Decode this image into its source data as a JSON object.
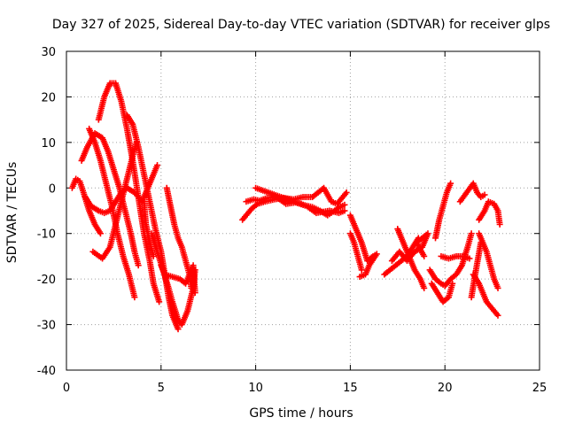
{
  "chart_data": {
    "type": "scatter",
    "title": "Day 327 of 2025, Sidereal Day-to-day VTEC variation (SDTVAR) for receiver glps",
    "xlabel": "GPS time / hours",
    "ylabel": "SDTVAR / TECUs",
    "xlim": [
      0,
      25
    ],
    "ylim": [
      -40,
      30
    ],
    "xticks": [
      0,
      5,
      10,
      15,
      20,
      25
    ],
    "yticks": [
      -40,
      -30,
      -20,
      -10,
      0,
      10,
      20,
      30
    ],
    "grid": true,
    "marker": "plus",
    "color": "#ff0000",
    "arcs": [
      {
        "pts": [
          [
            0.3,
            0
          ],
          [
            0.5,
            2
          ],
          [
            0.7,
            1.5
          ],
          [
            0.9,
            -1
          ],
          [
            1.2,
            -5
          ],
          [
            1.5,
            -8
          ],
          [
            1.8,
            -10
          ]
        ]
      },
      {
        "pts": [
          [
            0.8,
            6
          ],
          [
            1.1,
            9
          ],
          [
            1.5,
            12
          ],
          [
            1.9,
            11
          ],
          [
            2.2,
            8
          ],
          [
            2.5,
            4
          ],
          [
            2.8,
            0
          ],
          [
            3.1,
            -5
          ],
          [
            3.4,
            -10
          ],
          [
            3.6,
            -14
          ],
          [
            3.8,
            -17
          ]
        ]
      },
      {
        "pts": [
          [
            1.7,
            15
          ],
          [
            2.0,
            20
          ],
          [
            2.3,
            23
          ],
          [
            2.6,
            23
          ],
          [
            2.9,
            19
          ],
          [
            3.2,
            13
          ],
          [
            3.5,
            6
          ],
          [
            3.8,
            -2
          ],
          [
            4.1,
            -10
          ],
          [
            4.4,
            -16
          ],
          [
            4.6,
            -21
          ],
          [
            4.9,
            -25
          ]
        ]
      },
      {
        "pts": [
          [
            1.2,
            13
          ],
          [
            1.5,
            10
          ],
          [
            1.8,
            6
          ],
          [
            2.1,
            1
          ],
          [
            2.4,
            -4
          ],
          [
            2.7,
            -10
          ],
          [
            3.0,
            -15
          ],
          [
            3.3,
            -19
          ],
          [
            3.6,
            -24
          ]
        ]
      },
      {
        "pts": [
          [
            1.4,
            -14
          ],
          [
            1.9,
            -15.5
          ],
          [
            2.3,
            -13
          ],
          [
            2.6,
            -8
          ],
          [
            2.9,
            -3
          ],
          [
            3.2,
            2
          ],
          [
            3.5,
            7
          ],
          [
            3.7,
            10
          ]
        ]
      },
      {
        "pts": [
          [
            3.2,
            16
          ],
          [
            3.5,
            14
          ],
          [
            3.8,
            9
          ],
          [
            4.1,
            3
          ],
          [
            4.4,
            -3
          ],
          [
            4.7,
            -9
          ],
          [
            5.0,
            -14
          ],
          [
            5.2,
            -19
          ],
          [
            5.4,
            -24
          ],
          [
            5.6,
            -28
          ],
          [
            5.9,
            -31
          ]
        ]
      },
      {
        "pts": [
          [
            1.0,
            -2
          ],
          [
            1.3,
            -4
          ],
          [
            1.7,
            -5
          ],
          [
            2.0,
            -5.5
          ],
          [
            2.3,
            -5
          ],
          [
            2.6,
            -3
          ],
          [
            2.9,
            -1
          ],
          [
            3.2,
            0
          ],
          [
            3.6,
            -1
          ],
          [
            4.0,
            -3
          ],
          [
            4.3,
            0
          ],
          [
            4.6,
            3
          ],
          [
            4.8,
            5
          ]
        ]
      },
      {
        "pts": [
          [
            4.5,
            -10
          ],
          [
            4.8,
            -14
          ],
          [
            5.1,
            -18
          ],
          [
            5.4,
            -22
          ],
          [
            5.6,
            -25
          ],
          [
            5.9,
            -29
          ],
          [
            6.1,
            -30
          ],
          [
            6.4,
            -27
          ],
          [
            6.7,
            -22
          ],
          [
            6.8,
            -18
          ]
        ]
      },
      {
        "pts": [
          [
            5.3,
            0
          ],
          [
            5.5,
            -4
          ],
          [
            5.7,
            -8
          ],
          [
            5.9,
            -11
          ],
          [
            6.1,
            -13
          ],
          [
            6.3,
            -16
          ],
          [
            6.5,
            -19
          ],
          [
            6.6,
            -22
          ]
        ]
      },
      {
        "pts": [
          [
            4.1,
            -3
          ],
          [
            4.2,
            -8
          ],
          [
            4.4,
            -12
          ],
          [
            4.6,
            -15
          ]
        ]
      },
      {
        "pts": [
          [
            5.0,
            -17
          ],
          [
            5.2,
            -19
          ],
          [
            6.0,
            -20
          ],
          [
            6.3,
            -21
          ],
          [
            6.7,
            -17
          ],
          [
            6.8,
            -23
          ]
        ]
      },
      {
        "pts": [
          [
            9.3,
            -7
          ],
          [
            9.5,
            -6
          ],
          [
            9.8,
            -4.5
          ],
          [
            10.1,
            -3.5
          ],
          [
            10.5,
            -3
          ],
          [
            11.0,
            -2.5
          ],
          [
            11.5,
            -2.2
          ],
          [
            12.0,
            -2.5
          ],
          [
            12.5,
            -2
          ],
          [
            13.0,
            -2
          ],
          [
            13.3,
            -1
          ],
          [
            13.6,
            0
          ],
          [
            13.8,
            -1.5
          ],
          [
            14.0,
            -3
          ],
          [
            14.3,
            -3.5
          ],
          [
            14.6,
            -2
          ],
          [
            14.8,
            -1
          ]
        ]
      },
      {
        "pts": [
          [
            9.5,
            -3
          ],
          [
            9.9,
            -2.5
          ],
          [
            10.2,
            -2.8
          ],
          [
            10.6,
            -2.2
          ],
          [
            11.1,
            -2
          ],
          [
            11.6,
            -3.5
          ],
          [
            12.1,
            -3.2
          ],
          [
            12.6,
            -3.8
          ],
          [
            13.0,
            -4.2
          ],
          [
            13.4,
            -5
          ],
          [
            13.8,
            -6
          ],
          [
            14.1,
            -5.2
          ],
          [
            14.4,
            -4.3
          ],
          [
            14.7,
            -3.7
          ]
        ]
      },
      {
        "pts": [
          [
            10.0,
            0
          ],
          [
            12.7,
            -4
          ],
          [
            13.2,
            -5.5
          ],
          [
            13.9,
            -5
          ],
          [
            14.4,
            -5.5
          ],
          [
            14.7,
            -5
          ]
        ]
      },
      {
        "pts": [
          [
            15.0,
            -6
          ],
          [
            15.3,
            -9
          ],
          [
            15.6,
            -12
          ],
          [
            15.9,
            -16
          ],
          [
            16.2,
            -15
          ],
          [
            16.4,
            -14.5
          ],
          [
            16.0,
            -17
          ],
          [
            15.8,
            -19
          ],
          [
            15.5,
            -19.5
          ]
        ]
      },
      {
        "pts": [
          [
            15.0,
            -10
          ],
          [
            15.2,
            -12
          ],
          [
            15.4,
            -15
          ],
          [
            15.6,
            -18
          ]
        ]
      },
      {
        "pts": [
          [
            16.8,
            -19
          ],
          [
            17.1,
            -18
          ],
          [
            17.4,
            -17
          ],
          [
            17.7,
            -16
          ],
          [
            18.0,
            -15
          ],
          [
            18.3,
            -13
          ],
          [
            18.6,
            -11
          ]
        ]
      },
      {
        "pts": [
          [
            17.5,
            -9
          ],
          [
            17.8,
            -12
          ],
          [
            18.1,
            -15
          ],
          [
            18.4,
            -18
          ],
          [
            18.7,
            -20
          ],
          [
            18.9,
            -22
          ]
        ]
      },
      {
        "pts": [
          [
            17.2,
            -16
          ],
          [
            17.6,
            -14
          ],
          [
            18.0,
            -16
          ],
          [
            18.4,
            -14
          ],
          [
            18.8,
            -13
          ],
          [
            19.1,
            -10
          ],
          [
            18.5,
            -12
          ],
          [
            18.9,
            -15
          ]
        ]
      },
      {
        "pts": [
          [
            19.2,
            -18
          ],
          [
            19.5,
            -20
          ],
          [
            19.8,
            -21
          ],
          [
            20.0,
            -21.5
          ],
          [
            20.3,
            -20
          ],
          [
            20.6,
            -19
          ],
          [
            20.9,
            -17
          ],
          [
            21.2,
            -13
          ],
          [
            21.4,
            -10
          ]
        ]
      },
      {
        "pts": [
          [
            19.3,
            -21
          ],
          [
            19.6,
            -23
          ],
          [
            19.9,
            -25
          ],
          [
            20.2,
            -24
          ],
          [
            20.4,
            -21
          ]
        ]
      },
      {
        "pts": [
          [
            19.5,
            -11
          ],
          [
            19.7,
            -7
          ],
          [
            19.9,
            -4
          ],
          [
            20.1,
            -1
          ],
          [
            20.3,
            1
          ]
        ]
      },
      {
        "pts": [
          [
            19.8,
            -15
          ],
          [
            20.2,
            -15.5
          ],
          [
            20.6,
            -15
          ],
          [
            21.0,
            -15
          ],
          [
            21.3,
            -15.5
          ]
        ]
      },
      {
        "pts": [
          [
            20.8,
            -3
          ],
          [
            21.5,
            1
          ],
          [
            21.7,
            -1
          ],
          [
            21.9,
            -2
          ],
          [
            22.1,
            -1.5
          ]
        ]
      },
      {
        "pts": [
          [
            21.8,
            -10
          ],
          [
            22.0,
            -12
          ],
          [
            22.2,
            -14
          ],
          [
            22.4,
            -17
          ],
          [
            22.6,
            -20
          ],
          [
            22.8,
            -22
          ]
        ]
      },
      {
        "pts": [
          [
            21.5,
            -19
          ],
          [
            21.8,
            -21
          ],
          [
            22.0,
            -23
          ],
          [
            22.2,
            -25
          ],
          [
            22.4,
            -26
          ],
          [
            22.6,
            -27
          ],
          [
            22.8,
            -28
          ]
        ]
      },
      {
        "pts": [
          [
            21.8,
            -7
          ],
          [
            22.1,
            -5
          ],
          [
            22.3,
            -3
          ],
          [
            22.6,
            -3.5
          ],
          [
            22.8,
            -5
          ],
          [
            22.9,
            -8
          ]
        ]
      },
      {
        "pts": [
          [
            21.4,
            -24
          ],
          [
            21.6,
            -19
          ],
          [
            21.9,
            -12
          ]
        ]
      }
    ]
  }
}
